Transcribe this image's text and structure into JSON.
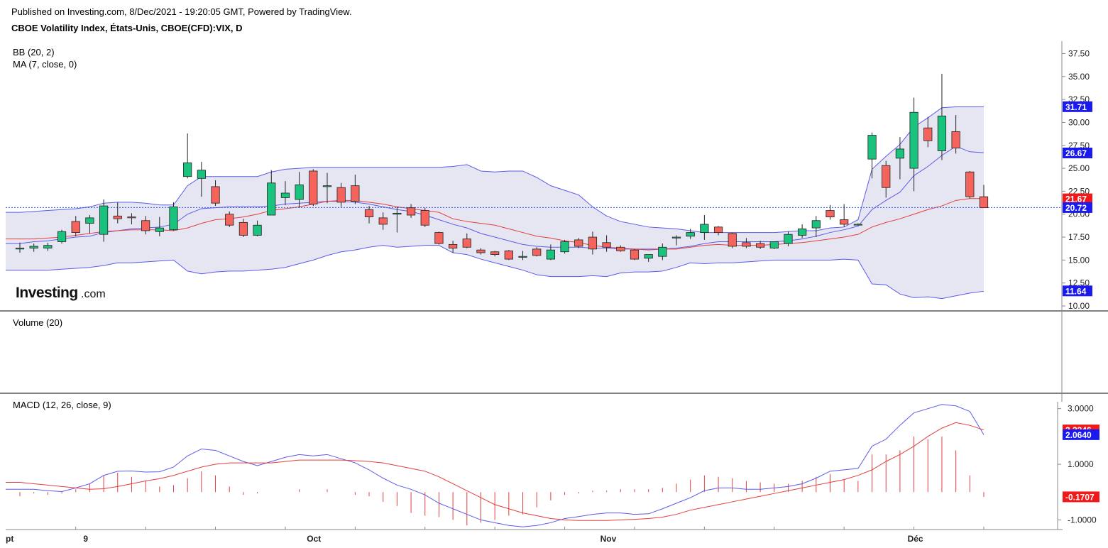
{
  "header": {
    "published": "Published on Investing.com, 8/Dec/2021 - 19:20:05 GMT, Powered by TradingView.",
    "symbol": "CBOE Volatility Index, États-Unis, CBOE(CFD):VIX, D"
  },
  "logo": {
    "main": "Investing",
    "suffix": ".com"
  },
  "colors": {
    "up": "#19c37d",
    "down": "#f4645d",
    "band": "#5b5bea",
    "band_fill": "#e6e6f3",
    "ma": "#e33e3e",
    "last_price_line": "#2f5cf5",
    "badge_blue": "#1a1aee",
    "badge_red": "#f01818"
  },
  "chart_data": [
    {
      "type": "candlestick",
      "panel": "price",
      "indicator_labels": [
        "BB (20, 2)",
        "MA (7, close, 0)"
      ],
      "y_ticks": [
        "37.50",
        "35.00",
        "32.50",
        "30.00",
        "27.50",
        "25.00",
        "22.50",
        "20.00",
        "17.50",
        "15.00",
        "12.50",
        "10.00"
      ],
      "ylim": [
        10.0,
        38.0
      ],
      "x_ticks": [
        {
          "label": "pt",
          "i": 0
        },
        {
          "label": "9",
          "i": 5
        },
        {
          "label": "Oct",
          "i": 21
        },
        {
          "label": "Nov",
          "i": 42
        },
        {
          "label": "Déc",
          "i": 64
        }
      ],
      "candles": [
        {
          "o": 16.2,
          "h": 16.9,
          "l": 15.8,
          "c": 16.3
        },
        {
          "o": 16.3,
          "h": 16.8,
          "l": 15.9,
          "c": 16.5
        },
        {
          "o": 16.3,
          "h": 16.9,
          "l": 16.0,
          "c": 16.6
        },
        {
          "o": 17.0,
          "h": 18.3,
          "l": 16.8,
          "c": 18.1
        },
        {
          "o": 19.2,
          "h": 19.8,
          "l": 17.6,
          "c": 18.0
        },
        {
          "o": 19.0,
          "h": 19.9,
          "l": 17.9,
          "c": 19.6
        },
        {
          "o": 17.8,
          "h": 21.6,
          "l": 17.0,
          "c": 20.9
        },
        {
          "o": 19.8,
          "h": 21.3,
          "l": 19.0,
          "c": 19.5
        },
        {
          "o": 19.7,
          "h": 20.1,
          "l": 18.9,
          "c": 19.6
        },
        {
          "o": 19.3,
          "h": 19.8,
          "l": 17.8,
          "c": 18.2
        },
        {
          "o": 18.1,
          "h": 19.7,
          "l": 17.6,
          "c": 18.5
        },
        {
          "o": 18.3,
          "h": 21.3,
          "l": 18.2,
          "c": 20.8
        },
        {
          "o": 24.1,
          "h": 28.8,
          "l": 23.9,
          "c": 25.6
        },
        {
          "o": 23.9,
          "h": 25.7,
          "l": 21.9,
          "c": 24.8
        },
        {
          "o": 23.0,
          "h": 23.7,
          "l": 20.9,
          "c": 21.2
        },
        {
          "o": 20.0,
          "h": 20.3,
          "l": 18.6,
          "c": 18.8
        },
        {
          "o": 19.1,
          "h": 19.5,
          "l": 17.5,
          "c": 17.7
        },
        {
          "o": 17.7,
          "h": 19.3,
          "l": 17.6,
          "c": 18.8
        },
        {
          "o": 19.9,
          "h": 24.8,
          "l": 19.9,
          "c": 23.4
        },
        {
          "o": 21.8,
          "h": 23.6,
          "l": 21.0,
          "c": 22.3
        },
        {
          "o": 21.6,
          "h": 24.6,
          "l": 20.7,
          "c": 23.2
        },
        {
          "o": 24.7,
          "h": 24.9,
          "l": 20.9,
          "c": 21.1
        },
        {
          "o": 23.0,
          "h": 24.5,
          "l": 21.2,
          "c": 23.1
        },
        {
          "o": 22.9,
          "h": 23.4,
          "l": 20.8,
          "c": 21.3
        },
        {
          "o": 23.1,
          "h": 24.3,
          "l": 21.1,
          "c": 21.4
        },
        {
          "o": 20.5,
          "h": 20.9,
          "l": 19.0,
          "c": 19.7
        },
        {
          "o": 19.6,
          "h": 20.2,
          "l": 18.3,
          "c": 18.9
        },
        {
          "o": 20.0,
          "h": 20.8,
          "l": 18.0,
          "c": 20.1
        },
        {
          "o": 20.7,
          "h": 21.1,
          "l": 19.6,
          "c": 19.9
        },
        {
          "o": 20.4,
          "h": 20.7,
          "l": 18.6,
          "c": 18.8
        },
        {
          "o": 18.0,
          "h": 18.1,
          "l": 16.7,
          "c": 16.8
        },
        {
          "o": 16.7,
          "h": 17.1,
          "l": 15.8,
          "c": 16.3
        },
        {
          "o": 17.3,
          "h": 17.9,
          "l": 16.3,
          "c": 16.4
        },
        {
          "o": 16.1,
          "h": 16.3,
          "l": 15.6,
          "c": 15.8
        },
        {
          "o": 15.9,
          "h": 16.0,
          "l": 15.4,
          "c": 15.6
        },
        {
          "o": 16.0,
          "h": 16.1,
          "l": 15.0,
          "c": 15.1
        },
        {
          "o": 15.3,
          "h": 16.0,
          "l": 15.0,
          "c": 15.4
        },
        {
          "o": 16.2,
          "h": 16.4,
          "l": 15.4,
          "c": 15.5
        },
        {
          "o": 15.1,
          "h": 16.7,
          "l": 15.0,
          "c": 16.1
        },
        {
          "o": 15.9,
          "h": 17.2,
          "l": 15.7,
          "c": 17.0
        },
        {
          "o": 17.2,
          "h": 17.4,
          "l": 16.3,
          "c": 16.5
        },
        {
          "o": 17.5,
          "h": 18.1,
          "l": 15.6,
          "c": 16.2
        },
        {
          "o": 16.9,
          "h": 17.7,
          "l": 15.9,
          "c": 16.4
        },
        {
          "o": 16.4,
          "h": 16.6,
          "l": 15.9,
          "c": 16.0
        },
        {
          "o": 16.1,
          "h": 16.2,
          "l": 15.0,
          "c": 15.1
        },
        {
          "o": 15.2,
          "h": 15.6,
          "l": 14.8,
          "c": 15.6
        },
        {
          "o": 15.4,
          "h": 16.8,
          "l": 15.0,
          "c": 16.4
        },
        {
          "o": 17.4,
          "h": 17.7,
          "l": 16.6,
          "c": 17.5
        },
        {
          "o": 17.6,
          "h": 18.4,
          "l": 17.3,
          "c": 18.0
        },
        {
          "o": 18.0,
          "h": 19.9,
          "l": 17.2,
          "c": 18.9
        },
        {
          "o": 18.6,
          "h": 18.7,
          "l": 17.7,
          "c": 18.0
        },
        {
          "o": 17.9,
          "h": 18.0,
          "l": 16.3,
          "c": 16.5
        },
        {
          "o": 16.9,
          "h": 17.4,
          "l": 16.3,
          "c": 16.5
        },
        {
          "o": 16.8,
          "h": 17.1,
          "l": 16.2,
          "c": 16.4
        },
        {
          "o": 16.3,
          "h": 17.0,
          "l": 16.2,
          "c": 17.0
        },
        {
          "o": 16.8,
          "h": 18.1,
          "l": 16.5,
          "c": 17.8
        },
        {
          "o": 17.7,
          "h": 18.9,
          "l": 17.4,
          "c": 18.4
        },
        {
          "o": 18.5,
          "h": 19.8,
          "l": 17.5,
          "c": 19.3
        },
        {
          "o": 20.4,
          "h": 21.0,
          "l": 19.4,
          "c": 19.7
        },
        {
          "o": 19.4,
          "h": 21.1,
          "l": 18.6,
          "c": 18.9
        },
        {
          "o": 18.9,
          "h": 19.0,
          "l": 18.8,
          "c": 18.9
        },
        {
          "o": 26.0,
          "h": 28.9,
          "l": 23.9,
          "c": 28.6
        },
        {
          "o": 25.3,
          "h": 25.8,
          "l": 21.8,
          "c": 22.9
        },
        {
          "o": 26.1,
          "h": 28.4,
          "l": 23.8,
          "c": 27.1
        },
        {
          "o": 25.0,
          "h": 32.7,
          "l": 22.5,
          "c": 31.1
        },
        {
          "o": 29.4,
          "h": 30.6,
          "l": 27.3,
          "c": 28.0
        },
        {
          "o": 26.9,
          "h": 35.3,
          "l": 25.9,
          "c": 30.7
        },
        {
          "o": 29.0,
          "h": 30.8,
          "l": 26.6,
          "c": 27.2
        },
        {
          "o": 24.6,
          "h": 24.7,
          "l": 21.7,
          "c": 21.9
        },
        {
          "o": 21.9,
          "h": 23.2,
          "l": 20.7,
          "c": 20.7
        }
      ],
      "bb_upper": [
        20.2,
        20.3,
        20.4,
        20.5,
        20.6,
        20.8,
        21.2,
        21.3,
        21.3,
        21.2,
        21.0,
        21.0,
        23.1,
        24.1,
        24.1,
        24.1,
        24.1,
        24.1,
        24.6,
        24.9,
        25.0,
        25.1,
        25.1,
        25.1,
        25.1,
        25.1,
        25.1,
        25.1,
        25.1,
        25.1,
        25.1,
        25.2,
        25.4,
        24.7,
        24.6,
        24.7,
        24.7,
        24.0,
        23.1,
        22.6,
        22.1,
        20.8,
        19.8,
        19.2,
        18.9,
        18.6,
        18.5,
        18.4,
        18.2,
        18.0,
        18.0,
        18.0,
        18.0,
        18.0,
        18.0,
        18.1,
        18.2,
        18.2,
        18.5,
        18.6,
        19.4,
        24.9,
        26.3,
        27.6,
        29.5,
        30.5,
        31.6,
        31.7,
        31.7,
        31.7
      ],
      "bb_middle": [
        16.8,
        17.0,
        17.1,
        17.3,
        17.5,
        17.6,
        18.0,
        18.2,
        18.4,
        18.5,
        18.6,
        18.9,
        20.0,
        20.6,
        20.7,
        20.8,
        20.8,
        20.8,
        20.9,
        21.1,
        21.2,
        21.3,
        21.4,
        21.4,
        21.3,
        21.1,
        20.8,
        20.5,
        20.3,
        19.9,
        19.4,
        18.9,
        18.5,
        17.9,
        17.5,
        17.1,
        16.7,
        16.5,
        16.4,
        16.4,
        16.4,
        16.3,
        16.3,
        16.2,
        16.2,
        16.2,
        16.2,
        16.3,
        16.5,
        16.8,
        17.0,
        17.0,
        17.0,
        17.0,
        17.0,
        17.1,
        17.3,
        17.6,
        18.0,
        18.3,
        18.7,
        20.5,
        21.5,
        22.4,
        24.2,
        25.2,
        26.4,
        27.4,
        26.8,
        26.7
      ],
      "bb_lower": [
        13.9,
        13.9,
        13.9,
        14.0,
        14.1,
        14.2,
        14.4,
        14.7,
        14.7,
        14.8,
        14.9,
        15.0,
        13.8,
        13.5,
        13.7,
        13.8,
        13.8,
        13.9,
        14.0,
        14.2,
        14.6,
        15.0,
        15.5,
        15.9,
        16.1,
        16.4,
        16.6,
        16.4,
        16.5,
        16.6,
        16.6,
        15.8,
        15.6,
        15.1,
        14.7,
        14.3,
        13.9,
        13.4,
        13.2,
        13.2,
        13.2,
        13.3,
        13.2,
        13.6,
        13.7,
        13.7,
        13.8,
        14.2,
        14.7,
        14.6,
        14.7,
        14.7,
        14.8,
        14.9,
        15.0,
        15.0,
        15.0,
        15.0,
        15.0,
        15.1,
        15.0,
        12.4,
        12.3,
        11.3,
        10.9,
        11.0,
        10.8,
        11.1,
        11.4,
        11.6
      ],
      "ma": [
        17.3,
        17.3,
        17.4,
        17.5,
        17.7,
        17.9,
        18.1,
        18.2,
        18.3,
        18.3,
        18.3,
        18.2,
        18.5,
        19.0,
        19.4,
        19.5,
        19.7,
        20.0,
        20.4,
        20.6,
        20.8,
        21.1,
        21.4,
        21.5,
        21.5,
        21.3,
        21.1,
        20.8,
        20.6,
        20.4,
        20.2,
        19.5,
        19.2,
        19.0,
        18.8,
        18.4,
        18.0,
        17.6,
        17.4,
        17.1,
        16.9,
        16.6,
        16.4,
        16.3,
        16.2,
        16.1,
        16.2,
        16.2,
        16.4,
        16.6,
        16.7,
        16.6,
        16.6,
        16.6,
        16.7,
        16.8,
        16.9,
        17.1,
        17.3,
        17.5,
        17.8,
        18.6,
        19.1,
        19.5,
        20.0,
        20.5,
        20.9,
        21.5,
        21.7,
        21.7
      ],
      "last_price": 20.72,
      "badges": [
        {
          "label": "31.71",
          "value": 31.71,
          "color": "blue"
        },
        {
          "label": "26.67",
          "value": 26.67,
          "color": "blue"
        },
        {
          "label": "21.67",
          "value": 21.67,
          "color": "red"
        },
        {
          "label": "20.72",
          "value": 20.72,
          "color": "blue"
        },
        {
          "label": "11.64",
          "value": 11.64,
          "color": "blue"
        }
      ]
    },
    {
      "type": "bar",
      "panel": "volume",
      "indicator_label": "Volume (20)",
      "values": []
    },
    {
      "type": "line",
      "panel": "macd",
      "indicator_label": "MACD (12, 26, close, 9)",
      "y_ticks": [
        "3.0000",
        "1.0000",
        "-1.0000"
      ],
      "ylim": [
        -1.5,
        3.4
      ],
      "series": [
        {
          "name": "MACD",
          "color": "#5b5bea",
          "values": [
            0.1,
            0.1,
            0.05,
            0.02,
            0.15,
            0.3,
            0.6,
            0.75,
            0.76,
            0.72,
            0.73,
            0.9,
            1.3,
            1.55,
            1.5,
            1.3,
            1.1,
            0.95,
            1.1,
            1.25,
            1.35,
            1.3,
            1.35,
            1.2,
            1.05,
            0.8,
            0.5,
            0.25,
            0.1,
            -0.1,
            -0.4,
            -0.6,
            -0.8,
            -1.0,
            -1.1,
            -1.2,
            -1.25,
            -1.2,
            -1.1,
            -0.95,
            -0.88,
            -0.8,
            -0.75,
            -0.75,
            -0.8,
            -0.78,
            -0.6,
            -0.4,
            -0.2,
            0.05,
            0.15,
            0.15,
            0.1,
            0.1,
            0.15,
            0.2,
            0.3,
            0.5,
            0.75,
            0.8,
            0.85,
            1.65,
            1.9,
            2.4,
            2.85,
            3.0,
            3.15,
            3.1,
            2.9,
            2.064
          ]
        },
        {
          "name": "Signal",
          "color": "#e33e3e",
          "values": [
            0.35,
            0.3,
            0.25,
            0.2,
            0.15,
            0.1,
            0.12,
            0.2,
            0.3,
            0.4,
            0.48,
            0.6,
            0.75,
            0.9,
            1.0,
            1.05,
            1.05,
            1.05,
            1.05,
            1.1,
            1.15,
            1.15,
            1.15,
            1.15,
            1.13,
            1.1,
            1.05,
            0.95,
            0.85,
            0.75,
            0.55,
            0.3,
            0.05,
            -0.2,
            -0.45,
            -0.6,
            -0.75,
            -0.85,
            -0.95,
            -1.0,
            -1.02,
            -1.02,
            -1.02,
            -1.0,
            -0.98,
            -0.95,
            -0.9,
            -0.8,
            -0.65,
            -0.55,
            -0.45,
            -0.35,
            -0.25,
            -0.15,
            -0.05,
            0.05,
            0.15,
            0.25,
            0.35,
            0.45,
            0.6,
            0.8,
            1.1,
            1.35,
            1.65,
            2.0,
            2.3,
            2.5,
            2.4,
            2.2346
          ]
        }
      ],
      "histogram": [
        -0.15,
        -0.05,
        -0.1,
        -0.05,
        0.1,
        0.3,
        0.6,
        0.7,
        0.55,
        0.4,
        0.2,
        0.25,
        0.5,
        0.75,
        0.6,
        0.2,
        -0.1,
        -0.05,
        0.0,
        0.0,
        0.1,
        0.0,
        0.1,
        0.0,
        -0.1,
        -0.15,
        -0.35,
        -0.5,
        -0.75,
        -0.85,
        -0.9,
        -1.0,
        -1.2,
        -1.1,
        -1.0,
        -0.85,
        -0.8,
        -0.55,
        -0.3,
        -0.1,
        -0.05,
        0.05,
        0.05,
        0.1,
        0.1,
        0.1,
        0.15,
        0.3,
        0.45,
        0.6,
        0.55,
        0.5,
        0.4,
        0.35,
        0.3,
        0.3,
        0.4,
        0.55,
        0.65,
        0.45,
        0.4,
        1.35,
        1.35,
        1.5,
        2.0,
        1.9,
        2.0,
        1.5,
        0.6,
        -0.1707
      ],
      "badges": [
        {
          "label": "2.2346",
          "value": 2.2346,
          "color": "red"
        },
        {
          "label": "2.0640",
          "value": 2.064,
          "color": "blue"
        },
        {
          "label": "-0.1707",
          "value": -0.1707,
          "color": "red"
        }
      ]
    }
  ]
}
